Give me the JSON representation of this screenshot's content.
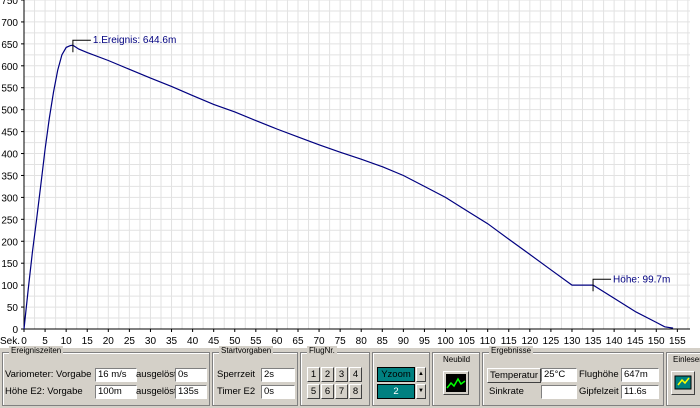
{
  "chart_data": {
    "type": "line",
    "xlabel": "Sek.",
    "ylabel": "",
    "xlim": [
      0,
      158
    ],
    "ylim": [
      0,
      750
    ],
    "xticks": [
      0,
      5,
      10,
      15,
      20,
      25,
      30,
      35,
      40,
      45,
      50,
      55,
      60,
      65,
      70,
      75,
      80,
      85,
      90,
      95,
      100,
      105,
      110,
      115,
      120,
      125,
      130,
      135,
      140,
      145,
      150,
      155
    ],
    "yticks": [
      0,
      50,
      100,
      150,
      200,
      250,
      300,
      350,
      400,
      450,
      500,
      550,
      600,
      650,
      700,
      750
    ],
    "grid": true,
    "line_color": "#000080",
    "series": [
      {
        "x": [
          0,
          1,
          2,
          3,
          4,
          5,
          6,
          7,
          8,
          9,
          10,
          11,
          11.6,
          13,
          15,
          20,
          25,
          30,
          35,
          40,
          45,
          50,
          55,
          60,
          65,
          70,
          75,
          80,
          85,
          90,
          95,
          100,
          105,
          110,
          115,
          120,
          125,
          130,
          135,
          140,
          145,
          150,
          152,
          154
        ],
        "y": [
          0,
          90,
          175,
          250,
          330,
          410,
          480,
          540,
          590,
          625,
          642,
          646,
          647,
          638,
          630,
          612,
          592,
          572,
          553,
          532,
          512,
          495,
          475,
          456,
          438,
          420,
          403,
          387,
          370,
          350,
          325,
          300,
          270,
          240,
          205,
          170,
          135,
          100,
          100,
          70,
          40,
          15,
          5,
          2
        ]
      }
    ],
    "annotations": [
      {
        "text": "1.Ereignis: 644.6m",
        "x": 11.6,
        "y": 644.6
      },
      {
        "text": "Höhe: 99.7m",
        "x": 135,
        "y": 99.7
      }
    ]
  },
  "ereigniszeiten": {
    "title": "Ereigniszeiten",
    "row1_label": "Variometer: Vorgabe",
    "row1_value": "16 m/s",
    "row1_ausgeloest_label": "ausgelöst",
    "row1_ausgeloest_value": "0s",
    "row2_label": "Höhe E2:  Vorgabe",
    "row2_value": "100m",
    "row2_ausgeloest_label": "ausgelöst",
    "row2_ausgeloest_value": "135s"
  },
  "startvorgaben": {
    "title": "Startvorgaben",
    "sperrzeit_label": "Sperrzeit",
    "sperrzeit_value": "2s",
    "timer_label": "Timer E2",
    "timer_value": "0s"
  },
  "flugnr": {
    "title": "FlugNr.",
    "buttons": [
      "1",
      "2",
      "3",
      "4",
      "5",
      "6",
      "7",
      "8"
    ]
  },
  "yzoom": {
    "label": "Yzoom",
    "value": "2",
    "up": "▲",
    "down": "▼"
  },
  "neubild": {
    "title": "Neubild"
  },
  "ergebnisse": {
    "title": "Ergebnisse",
    "temperatur_button": "Temperatur",
    "temperatur_value": "25°C",
    "sinkrate_label": "Sinkrate",
    "flughoehe_label": "Flughöhe",
    "flughoehe_value": "647m",
    "gipfelzeit_label": "Gipfelzeit",
    "gipfelzeit_value": "11.6s"
  },
  "einlesen": {
    "title": "Einleser"
  }
}
